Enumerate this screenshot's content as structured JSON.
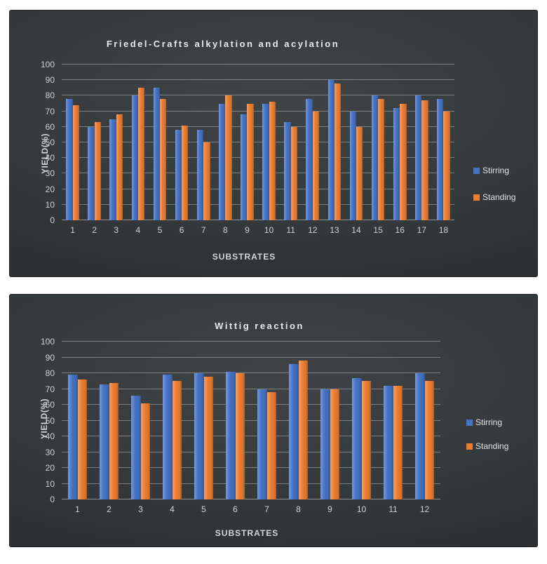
{
  "colors": {
    "stirring": "#4472C4",
    "standing": "#ED7D31",
    "panel_background": "#333739",
    "gridline": "#c3c8cb",
    "text": "#d4d6d8"
  },
  "chart_data": [
    {
      "type": "bar",
      "title": "Friedel-Crafts alkylation and acylation",
      "xlabel": "SUBSTRATES",
      "ylabel": "YIELD(%)",
      "ylim": [
        0,
        100
      ],
      "ytick_step": 10,
      "grid": true,
      "legend_position": "right",
      "categories": [
        "1",
        "2",
        "3",
        "4",
        "5",
        "6",
        "7",
        "8",
        "9",
        "10",
        "11",
        "12",
        "13",
        "14",
        "15",
        "16",
        "17",
        "18"
      ],
      "series": [
        {
          "name": "Stirring",
          "color": "#4472C4",
          "values": [
            78,
            60,
            65,
            80,
            85,
            58,
            58,
            75,
            68,
            75,
            63,
            78,
            90,
            70,
            80,
            72,
            80,
            78
          ]
        },
        {
          "name": "Standing",
          "color": "#ED7D31",
          "values": [
            74,
            63,
            68,
            85,
            78,
            61,
            50,
            80,
            75,
            76,
            60,
            70,
            88,
            60,
            78,
            75,
            77,
            70
          ]
        }
      ]
    },
    {
      "type": "bar",
      "title": "Wittig reaction",
      "xlabel": "SUBSTRATES",
      "ylabel": "YIELD(%)",
      "ylim": [
        0,
        100
      ],
      "ytick_step": 10,
      "grid": true,
      "legend_position": "right",
      "categories": [
        "1",
        "2",
        "3",
        "4",
        "5",
        "6",
        "7",
        "8",
        "9",
        "10",
        "11",
        "12"
      ],
      "series": [
        {
          "name": "Stirring",
          "color": "#4472C4",
          "values": [
            79,
            73,
            66,
            79,
            80,
            81,
            70,
            86,
            70,
            77,
            72,
            80
          ]
        },
        {
          "name": "Standing",
          "color": "#ED7D31",
          "values": [
            76,
            74,
            61,
            75,
            78,
            80,
            68,
            88,
            70,
            75,
            72,
            75
          ]
        }
      ]
    }
  ]
}
